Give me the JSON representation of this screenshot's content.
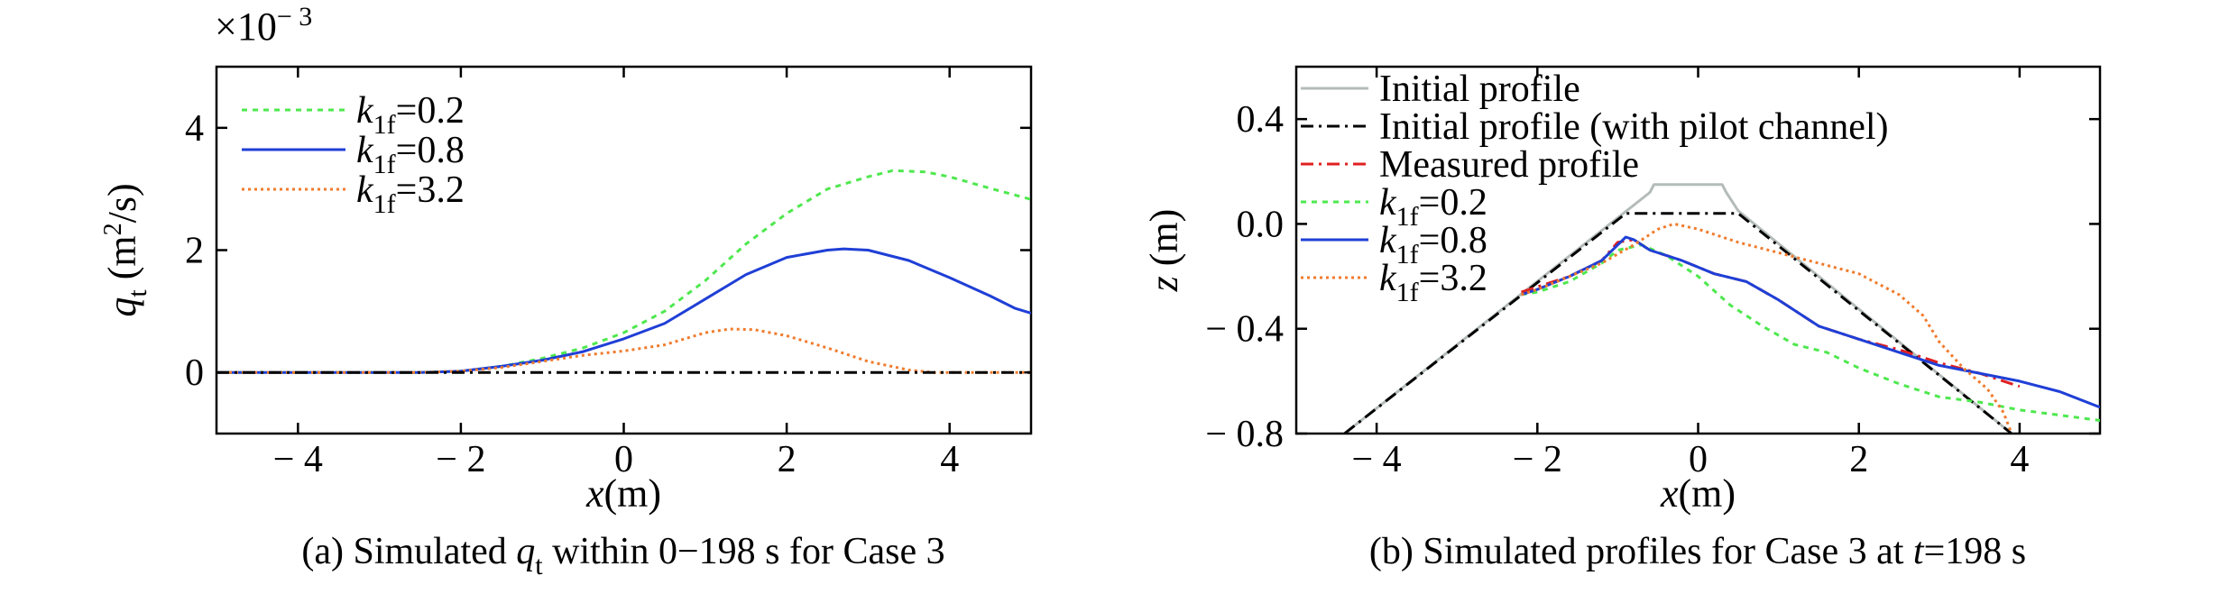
{
  "chart_data": [
    {
      "type": "line",
      "panel_id": "a",
      "caption": {
        "prefix": "(a) Simulated ",
        "var": "q",
        "var_sub": "t",
        "suffix": "  within 0−198 s for Case 3"
      },
      "xlabel": {
        "var": "x",
        "unit": "(m)"
      },
      "ylabel": {
        "var": "q",
        "sub": "t",
        "unit_pre": " (m",
        "unit_sup": "2",
        "unit_post": "/s)"
      },
      "multiplier": {
        "text": "×10",
        "sup": "− 3"
      },
      "xlim": [
        -5,
        5
      ],
      "ylim": [
        -0.001,
        0.005
      ],
      "xticks": [
        -4,
        -2,
        0,
        2,
        4
      ],
      "xtick_labels": [
        "− 4",
        "− 2",
        "0",
        "2",
        "4"
      ],
      "yticks": [
        0,
        0.002,
        0.004
      ],
      "ytick_labels": [
        "0",
        "2",
        "4"
      ],
      "legend_position": "top-left",
      "series": [
        {
          "name": "k_1f=0.2",
          "legend_var": "k",
          "legend_sub": "1f",
          "legend_val": "=0.2",
          "color": "#4ee84e",
          "dash": "6,6",
          "x": [
            -5,
            -2.5,
            -2,
            -1.5,
            -1,
            -0.5,
            0,
            0.5,
            1,
            1.5,
            2,
            2.5,
            3,
            3.3,
            3.7,
            4,
            4.5,
            5
          ],
          "y": [
            0,
            0,
            2e-05,
            0.0001,
            0.00023,
            0.0004,
            0.00065,
            0.001,
            0.0015,
            0.0021,
            0.0026,
            0.003,
            0.0032,
            0.0033,
            0.00328,
            0.0032,
            0.00301,
            0.00283
          ]
        },
        {
          "name": "k_1f=0.8",
          "legend_var": "k",
          "legend_sub": "1f",
          "legend_val": "=0.8",
          "color": "#1f3fd6",
          "dash": "",
          "x": [
            -5,
            -2.5,
            -2,
            -1.5,
            -1,
            -0.5,
            0,
            0.5,
            1,
            1.5,
            2,
            2.5,
            2.7,
            3,
            3.5,
            4,
            4.5,
            4.8,
            5
          ],
          "y": [
            0,
            0,
            2e-05,
            0.0001,
            0.0002,
            0.00034,
            0.00055,
            0.0008,
            0.0012,
            0.0016,
            0.00188,
            0.002,
            0.00202,
            0.002,
            0.00183,
            0.00155,
            0.00125,
            0.00105,
            0.00097
          ]
        },
        {
          "name": "k_1f=3.2",
          "legend_var": "k",
          "legend_sub": "1f",
          "legend_val": "=3.2",
          "color": "#f07b2c",
          "dash": "3,4",
          "x": [
            -5,
            -2.5,
            -2,
            -1.5,
            -1,
            -0.5,
            0,
            0.5,
            1,
            1.3,
            1.6,
            2,
            2.5,
            3,
            3.5,
            3.8,
            4,
            5
          ],
          "y": [
            0,
            0,
            2e-05,
            8e-05,
            0.00018,
            0.00028,
            0.00035,
            0.00045,
            0.00065,
            0.00071,
            0.0007,
            0.0006,
            0.0004,
            0.00018,
            4e-05,
            0,
            0,
            0
          ]
        },
        {
          "name": "",
          "color": "#000000",
          "dash": "14,6,3,6",
          "x": [
            -5,
            5
          ],
          "y": [
            0,
            0
          ]
        }
      ]
    },
    {
      "type": "line",
      "panel_id": "b",
      "caption": {
        "prefix": "(b) Simulated profiles for Case 3 at ",
        "var": "t",
        "suffix": "=198 s"
      },
      "xlabel": {
        "var": "x",
        "unit": "(m)"
      },
      "ylabel": {
        "var": "z",
        "unit": " (m)"
      },
      "xlim": [
        -5,
        5
      ],
      "ylim": [
        -0.8,
        0.6
      ],
      "xticks": [
        -4,
        -2,
        0,
        2,
        4
      ],
      "xtick_labels": [
        "− 4",
        "− 2",
        "0",
        "2",
        "4"
      ],
      "yticks": [
        -0.8,
        -0.4,
        0,
        0.4
      ],
      "ytick_labels": [
        "− 0.8",
        "− 0.4",
        "0.0",
        "0.4"
      ],
      "legend_position": "top-left",
      "series": [
        {
          "name": "Initial profile",
          "legend_text": "Initial profile",
          "color": "#b4bcb8",
          "dash": "",
          "x": [
            -4.4,
            -0.6,
            -0.55,
            0.3,
            0.35,
            0.5,
            3.9
          ],
          "y": [
            -0.8,
            0.12,
            0.15,
            0.15,
            0.12,
            0.05,
            -0.8
          ]
        },
        {
          "name": "Initial profile (with pilot channel)",
          "legend_text": "Initial profile (with pilot channel)",
          "color": "#000000",
          "dash": "14,6,3,6",
          "x": [
            -4.4,
            -0.9,
            0.5,
            3.9
          ],
          "y": [
            -0.8,
            0.04,
            0.04,
            -0.8
          ]
        },
        {
          "name": "Measured profile",
          "legend_text": "Measured profile",
          "color": "#e02020",
          "dash": "14,6,3,6",
          "x": [
            -2.2,
            -2,
            -1.6,
            -1.2,
            -1,
            -0.8,
            -0.6,
            -0.2,
            0.2,
            0.6,
            1,
            1.5,
            2,
            2.5,
            3,
            3.5,
            4
          ],
          "y": [
            -0.26,
            -0.24,
            -0.2,
            -0.14,
            -0.07,
            -0.06,
            -0.1,
            -0.14,
            -0.19,
            -0.22,
            -0.29,
            -0.39,
            -0.44,
            -0.48,
            -0.53,
            -0.57,
            -0.62
          ]
        },
        {
          "name": "k_1f=0.2",
          "legend_var": "k",
          "legend_sub": "1f",
          "legend_val": "=0.2",
          "color": "#4ee84e",
          "dash": "6,6",
          "x": [
            -2.2,
            -2,
            -1.6,
            -1.2,
            -1,
            -0.7,
            -0.4,
            0,
            0.4,
            0.8,
            1.2,
            1.6,
            2,
            2.5,
            3,
            3.5,
            4,
            4.5,
            5
          ],
          "y": [
            -0.27,
            -0.26,
            -0.22,
            -0.15,
            -0.1,
            -0.08,
            -0.12,
            -0.2,
            -0.31,
            -0.39,
            -0.46,
            -0.49,
            -0.55,
            -0.61,
            -0.66,
            -0.68,
            -0.71,
            -0.73,
            -0.75
          ]
        },
        {
          "name": "k_1f=0.8",
          "legend_var": "k",
          "legend_sub": "1f",
          "legend_val": "=0.8",
          "color": "#1f3fd6",
          "dash": "",
          "x": [
            -2.2,
            -2,
            -1.6,
            -1.2,
            -1,
            -0.9,
            -0.8,
            -0.6,
            -0.2,
            0.2,
            0.6,
            1,
            1.5,
            2,
            2.5,
            3,
            3.5,
            4,
            4.5,
            5
          ],
          "y": [
            -0.27,
            -0.25,
            -0.2,
            -0.14,
            -0.08,
            -0.05,
            -0.06,
            -0.1,
            -0.14,
            -0.19,
            -0.22,
            -0.29,
            -0.39,
            -0.44,
            -0.49,
            -0.54,
            -0.57,
            -0.6,
            -0.64,
            -0.7
          ]
        },
        {
          "name": "k_1f=3.2",
          "legend_var": "k",
          "legend_sub": "1f",
          "legend_val": "=3.2",
          "color": "#f07b2c",
          "dash": "3,4",
          "x": [
            -2.2,
            -2,
            -1.6,
            -1.2,
            -0.8,
            -0.5,
            -0.3,
            0,
            0.5,
            1,
            1.5,
            2,
            2.5,
            2.8,
            3,
            3.3,
            3.6,
            3.8,
            3.9
          ],
          "y": [
            -0.27,
            -0.25,
            -0.2,
            -0.15,
            -0.08,
            -0.02,
            0.0,
            -0.02,
            -0.07,
            -0.11,
            -0.15,
            -0.19,
            -0.27,
            -0.35,
            -0.45,
            -0.55,
            -0.63,
            -0.72,
            -0.8
          ]
        }
      ]
    }
  ]
}
